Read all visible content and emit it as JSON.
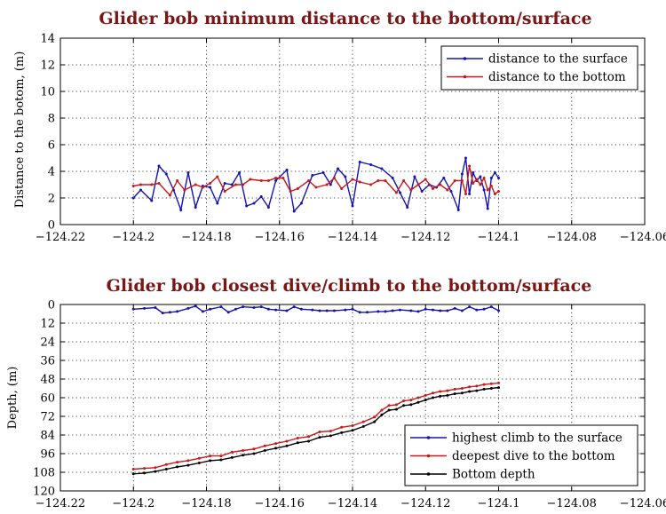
{
  "chart_data": [
    {
      "type": "line",
      "title": "Glider bob minimum distance to the bottom/surface",
      "xlabel": "",
      "ylabel": "Distance to the botom, (m)",
      "xlim": [
        -124.22,
        -124.06
      ],
      "ylim": [
        0,
        14
      ],
      "grid": true,
      "legend_position": "top-right",
      "xticks": [
        "−124.22",
        "−124.2",
        "−124.18",
        "−124.16",
        "−124.14",
        "−124.12",
        "−124.1",
        "−124.08",
        "−124.06"
      ],
      "yticks": [
        "0",
        "2",
        "4",
        "6",
        "8",
        "10",
        "12",
        "14"
      ],
      "series": [
        {
          "name": "distance to the surface",
          "color": "#1414b4",
          "x": [
            -124.2,
            -124.198,
            -124.195,
            -124.193,
            -124.191,
            -124.189,
            -124.187,
            -124.185,
            -124.183,
            -124.181,
            -124.179,
            -124.177,
            -124.175,
            -124.173,
            -124.171,
            -124.169,
            -124.167,
            -124.165,
            -124.163,
            -124.161,
            -124.158,
            -124.156,
            -124.154,
            -124.151,
            -124.148,
            -124.146,
            -124.144,
            -124.142,
            -124.14,
            -124.138,
            -124.135,
            -124.132,
            -124.129,
            -124.127,
            -124.125,
            -124.123,
            -124.121,
            -124.119,
            -124.117,
            -124.115,
            -124.113,
            -124.111,
            -124.11,
            -124.109,
            -124.108,
            -124.107,
            -124.106,
            -124.105,
            -124.104,
            -124.103,
            -124.102,
            -124.101,
            -124.1
          ],
          "y": [
            2.0,
            2.6,
            1.8,
            4.4,
            3.8,
            2.6,
            1.1,
            3.9,
            1.3,
            2.9,
            2.8,
            1.6,
            3.1,
            3.0,
            3.9,
            1.4,
            1.6,
            2.1,
            1.3,
            3.3,
            4.1,
            1.0,
            1.6,
            3.7,
            3.9,
            3.0,
            4.2,
            3.6,
            1.4,
            4.7,
            4.5,
            4.2,
            3.5,
            2.4,
            1.3,
            3.6,
            2.5,
            3.0,
            2.8,
            3.5,
            2.5,
            1.1,
            3.8,
            5.0,
            2.3,
            3.9,
            3.3,
            3.6,
            2.6,
            1.2,
            3.5,
            3.9,
            3.5
          ]
        },
        {
          "name": "distance to the bottom",
          "color": "#c81818",
          "x": [
            -124.2,
            -124.198,
            -124.195,
            -124.193,
            -124.19,
            -124.188,
            -124.186,
            -124.183,
            -124.181,
            -124.179,
            -124.177,
            -124.175,
            -124.172,
            -124.17,
            -124.168,
            -124.165,
            -124.163,
            -124.161,
            -124.159,
            -124.157,
            -124.155,
            -124.152,
            -124.15,
            -124.147,
            -124.145,
            -124.143,
            -124.14,
            -124.138,
            -124.135,
            -124.133,
            -124.131,
            -124.128,
            -124.126,
            -124.124,
            -124.122,
            -124.12,
            -124.118,
            -124.116,
            -124.114,
            -124.112,
            -124.11,
            -124.109,
            -124.108,
            -124.107,
            -124.106,
            -124.105,
            -124.104,
            -124.103,
            -124.102,
            -124.101,
            -124.1
          ],
          "y": [
            2.9,
            3.0,
            3.0,
            3.1,
            2.2,
            3.3,
            2.6,
            3.0,
            2.8,
            3.1,
            3.6,
            2.5,
            3.0,
            3.0,
            3.4,
            3.3,
            3.3,
            3.5,
            3.5,
            2.5,
            2.7,
            3.3,
            2.8,
            3.0,
            3.5,
            2.7,
            3.4,
            3.2,
            3.0,
            3.3,
            3.3,
            2.4,
            3.3,
            2.6,
            3.0,
            3.4,
            2.7,
            3.0,
            2.6,
            3.3,
            3.3,
            2.3,
            4.4,
            3.1,
            3.4,
            3.0,
            3.5,
            2.6,
            2.9,
            2.3,
            2.5
          ]
        }
      ]
    },
    {
      "type": "line",
      "title": "Glider bob closest dive/climb to the bottom/surface",
      "xlabel": "",
      "ylabel": "Depth, (m)",
      "xlim": [
        -124.22,
        -124.06
      ],
      "ylim": [
        120,
        0
      ],
      "reversed_y": true,
      "grid": true,
      "legend_position": "bottom-right",
      "xticks": [
        "−124.22",
        "−124.2",
        "−124.18",
        "−124.16",
        "−124.14",
        "−124.12",
        "−124.1",
        "−124.08",
        "−124.06"
      ],
      "yticks": [
        "0",
        "12",
        "24",
        "36",
        "48",
        "60",
        "72",
        "84",
        "96",
        "108",
        "120"
      ],
      "series": [
        {
          "name": "highest climb to the surface",
          "color": "#1414b4",
          "x": [
            -124.2,
            -124.197,
            -124.194,
            -124.192,
            -124.19,
            -124.188,
            -124.185,
            -124.183,
            -124.181,
            -124.179,
            -124.176,
            -124.174,
            -124.172,
            -124.17,
            -124.167,
            -124.165,
            -124.163,
            -124.161,
            -124.158,
            -124.156,
            -124.154,
            -124.151,
            -124.149,
            -124.147,
            -124.145,
            -124.142,
            -124.14,
            -124.138,
            -124.136,
            -124.133,
            -124.131,
            -124.129,
            -124.127,
            -124.124,
            -124.122,
            -124.12,
            -124.118,
            -124.116,
            -124.114,
            -124.112,
            -124.11,
            -124.108,
            -124.106,
            -124.104,
            -124.102,
            -124.1
          ],
          "y": [
            3.0,
            2.5,
            2.0,
            5.5,
            5.0,
            4.5,
            2.5,
            1.0,
            4.5,
            3.0,
            1.5,
            5.0,
            3.0,
            1.5,
            2.0,
            1.5,
            3.0,
            3.5,
            4.0,
            1.5,
            3.0,
            3.5,
            4.0,
            4.0,
            4.0,
            3.5,
            3.0,
            5.0,
            5.0,
            4.5,
            4.5,
            4.0,
            3.5,
            4.0,
            4.5,
            3.0,
            3.5,
            4.0,
            4.0,
            2.5,
            4.0,
            1.5,
            3.5,
            3.0,
            1.5,
            4.0
          ]
        },
        {
          "name": "deepest dive to the bottom",
          "color": "#c81818",
          "x": [
            -124.2,
            -124.197,
            -124.194,
            -124.191,
            -124.188,
            -124.185,
            -124.182,
            -124.179,
            -124.176,
            -124.173,
            -124.17,
            -124.167,
            -124.164,
            -124.161,
            -124.158,
            -124.155,
            -124.152,
            -124.149,
            -124.146,
            -124.143,
            -124.14,
            -124.137,
            -124.134,
            -124.132,
            -124.13,
            -124.128,
            -124.126,
            -124.124,
            -124.122,
            -124.12,
            -124.118,
            -124.116,
            -124.114,
            -124.112,
            -124.11,
            -124.108,
            -124.106,
            -124.104,
            -124.102,
            -124.1
          ],
          "y": [
            106.0,
            105.5,
            105.0,
            103.0,
            101.5,
            100.5,
            99.0,
            97.5,
            97.5,
            95.0,
            94.0,
            93.0,
            91.0,
            89.5,
            88.0,
            86.0,
            85.0,
            82.0,
            81.5,
            79.0,
            78.0,
            75.5,
            72.5,
            68.0,
            65.0,
            64.5,
            62.0,
            61.5,
            60.0,
            58.5,
            57.0,
            56.0,
            55.5,
            54.5,
            54.0,
            53.0,
            52.5,
            51.5,
            51.0,
            50.5
          ]
        },
        {
          "name": "Bottom depth",
          "color": "#000000",
          "x": [
            -124.2,
            -124.197,
            -124.194,
            -124.191,
            -124.188,
            -124.185,
            -124.182,
            -124.179,
            -124.176,
            -124.173,
            -124.17,
            -124.167,
            -124.164,
            -124.161,
            -124.158,
            -124.155,
            -124.152,
            -124.149,
            -124.146,
            -124.143,
            -124.14,
            -124.137,
            -124.134,
            -124.132,
            -124.13,
            -124.128,
            -124.126,
            -124.124,
            -124.122,
            -124.12,
            -124.118,
            -124.116,
            -124.114,
            -124.112,
            -124.11,
            -124.108,
            -124.106,
            -124.104,
            -124.102,
            -124.1
          ],
          "y": [
            109.0,
            108.5,
            107.5,
            106.0,
            104.5,
            103.5,
            102.0,
            100.5,
            100.0,
            98.5,
            97.0,
            96.0,
            94.0,
            92.5,
            91.0,
            89.0,
            88.0,
            85.5,
            84.5,
            82.5,
            81.0,
            78.5,
            75.5,
            71.0,
            68.0,
            67.5,
            65.0,
            64.5,
            63.0,
            61.5,
            60.0,
            59.0,
            58.5,
            57.5,
            57.0,
            56.0,
            55.5,
            54.5,
            54.0,
            53.5
          ]
        }
      ]
    }
  ]
}
